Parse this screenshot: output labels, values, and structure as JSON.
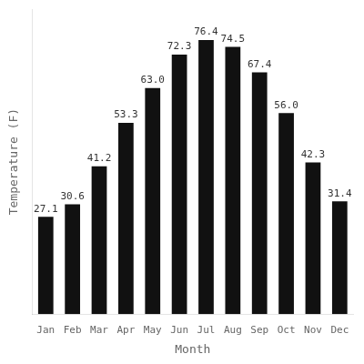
{
  "chart_data": {
    "type": "bar",
    "categories": [
      "Jan",
      "Feb",
      "Mar",
      "Apr",
      "May",
      "Jun",
      "Jul",
      "Aug",
      "Sep",
      "Oct",
      "Nov",
      "Dec"
    ],
    "values": [
      27.1,
      30.6,
      41.2,
      53.3,
      63.0,
      72.3,
      76.4,
      74.5,
      67.4,
      56.0,
      42.3,
      31.4
    ],
    "value_labels": [
      "27.1",
      "30.6",
      "41.2",
      "53.3",
      "63.0",
      "72.3",
      "76.4",
      "74.5",
      "67.4",
      "56.0",
      "42.3",
      "31.4"
    ],
    "color": "#111111",
    "x_label": "Month",
    "y_label": "Temperature (F)",
    "ylim": [
      0,
      85
    ],
    "tick_labels": "x",
    "grid": false,
    "data_labels": true
  }
}
